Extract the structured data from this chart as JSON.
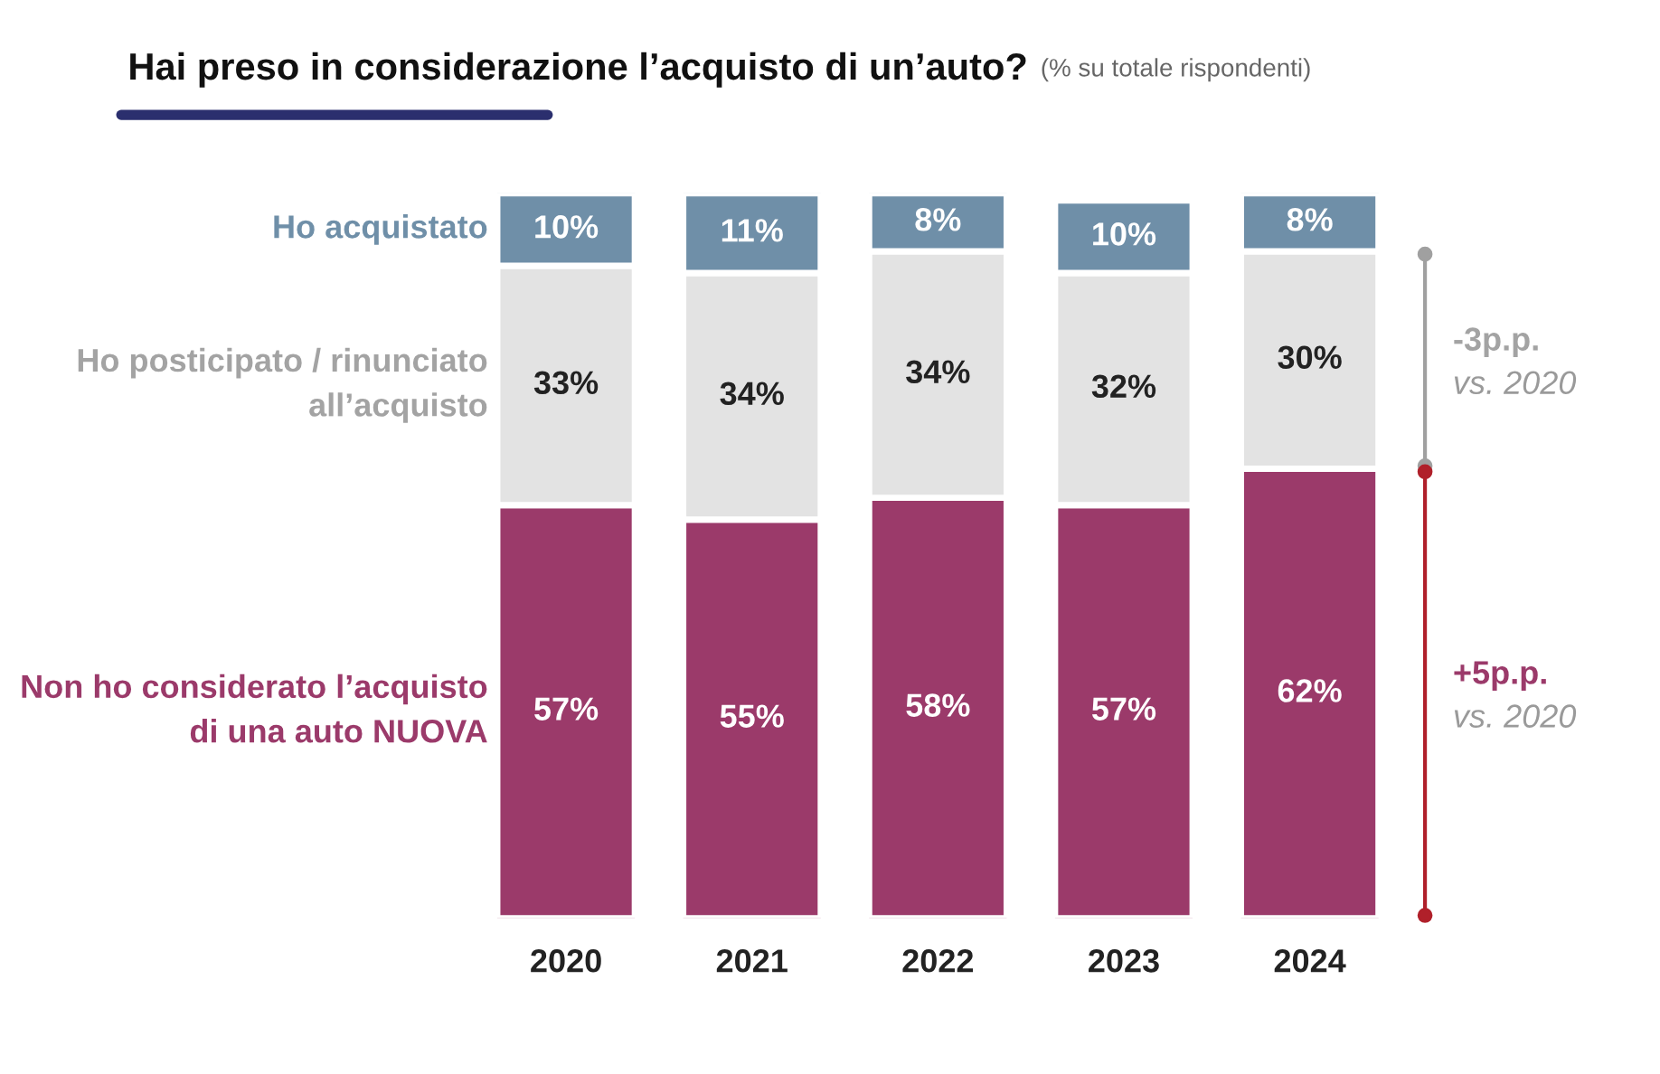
{
  "chart_data": {
    "type": "bar",
    "stacked": true,
    "title": "Hai preso in considerazione l’acquisto di un’auto?",
    "subtitle": "(% su totale rispondenti)",
    "categories": [
      "2020",
      "2021",
      "2022",
      "2023",
      "2024"
    ],
    "series": [
      {
        "name": "Non ho considerato l’acquisto di una auto NUOVA",
        "color": "#9b3a6a",
        "values": [
          57,
          55,
          58,
          57,
          62
        ],
        "value_labels": [
          "57%",
          "55%",
          "58%",
          "57%",
          "62%"
        ]
      },
      {
        "name": "Ho posticipato / rinunciato all’acquisto",
        "color": "#e3e3e3",
        "values": [
          33,
          34,
          34,
          32,
          30
        ],
        "value_labels": [
          "33%",
          "34%",
          "34%",
          "32%",
          "30%"
        ]
      },
      {
        "name": "Ho acquistato",
        "color": "#6f8fa8",
        "values": [
          10,
          11,
          8,
          10,
          8
        ],
        "value_labels": [
          "10%",
          "11%",
          "8%",
          "10%",
          "8%"
        ]
      }
    ],
    "annotations": [
      "-3p.p.\nvs. 2020",
      "+5p.p.\nvs. 2020"
    ],
    "grid": false,
    "legend": false
  }
}
